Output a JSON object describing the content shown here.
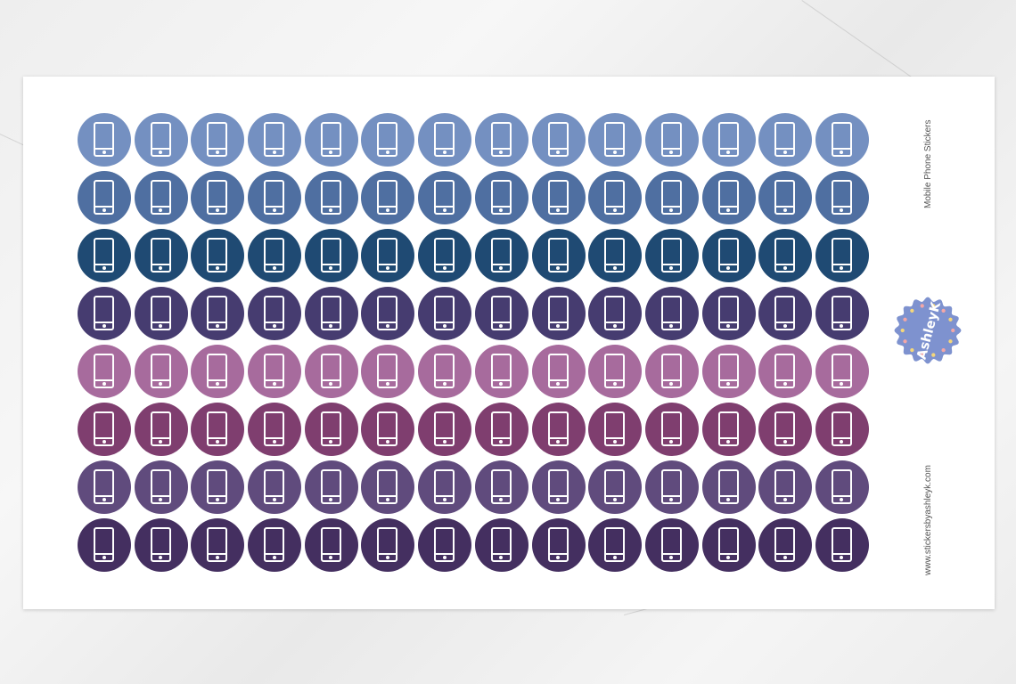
{
  "sheet": {
    "title": "Mobile Phone Stickers",
    "website": "www.stickersbyashleyk.com",
    "logo_text": "by AshleyK",
    "columns": 14,
    "icon": "mobile-phone-icon",
    "row_colors": [
      "#7490c1",
      "#4f6fa1",
      "#1f4a73",
      "#463c70",
      "#a76b9d",
      "#7f3e6f",
      "#604b7d",
      "#442f60"
    ]
  }
}
